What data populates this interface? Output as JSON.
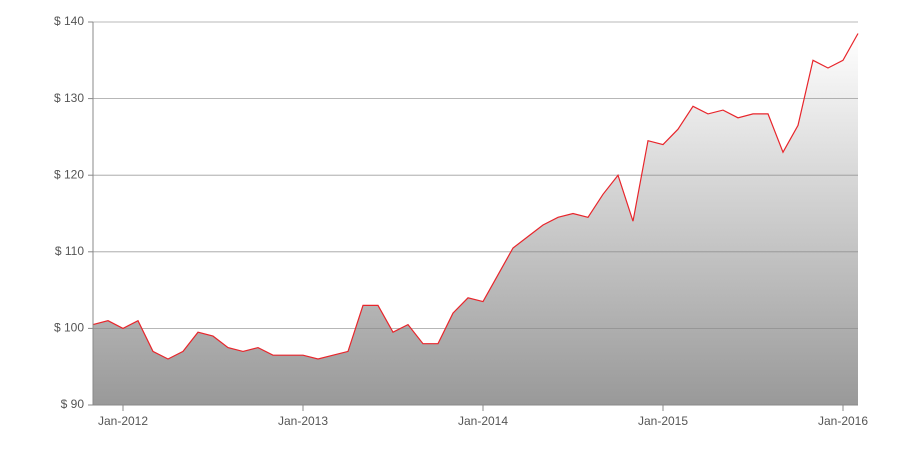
{
  "chart_data": {
    "type": "area",
    "x": [
      "2011-11",
      "2011-12",
      "2012-01",
      "2012-02",
      "2012-03",
      "2012-04",
      "2012-05",
      "2012-06",
      "2012-07",
      "2012-08",
      "2012-09",
      "2012-10",
      "2012-11",
      "2012-12",
      "2013-01",
      "2013-02",
      "2013-03",
      "2013-04",
      "2013-05",
      "2013-06",
      "2013-07",
      "2013-08",
      "2013-09",
      "2013-10",
      "2013-11",
      "2013-12",
      "2014-01",
      "2014-02",
      "2014-03",
      "2014-04",
      "2014-05",
      "2014-06",
      "2014-07",
      "2014-08",
      "2014-09",
      "2014-10",
      "2014-11",
      "2014-12",
      "2015-01",
      "2015-02",
      "2015-03",
      "2015-04",
      "2015-05",
      "2015-06",
      "2015-07",
      "2015-08",
      "2015-09",
      "2015-10",
      "2015-11",
      "2015-12",
      "2016-01",
      "2016-02"
    ],
    "series": [
      {
        "color": "#e8252b",
        "values": [
          100.5,
          101,
          100,
          101,
          97,
          96,
          97,
          99.5,
          99,
          97.5,
          97,
          97.5,
          96.5,
          96.5,
          96.5,
          96,
          96.5,
          97,
          103,
          103,
          99.5,
          100.5,
          98,
          98,
          102,
          104,
          103.5,
          107,
          110.5,
          112,
          113.5,
          114.5,
          115,
          114.5,
          117.5,
          120,
          114,
          124.5,
          124,
          126,
          129,
          128,
          128.5,
          127.5,
          128,
          128,
          123,
          126.5,
          135,
          134,
          135,
          138.5
        ]
      }
    ],
    "xlim": [
      "2011-11",
      "2016-02"
    ],
    "xticks": [
      {
        "value": "2012-01",
        "label": "Jan-2012"
      },
      {
        "value": "2013-01",
        "label": "Jan-2013"
      },
      {
        "value": "2014-01",
        "label": "Jan-2014"
      },
      {
        "value": "2015-01",
        "label": "Jan-2015"
      },
      {
        "value": "2016-01",
        "label": "Jan-2016"
      }
    ],
    "ylim": [
      90,
      140
    ],
    "yticks": [
      {
        "value": 90,
        "label": "$ 90"
      },
      {
        "value": 100,
        "label": "$ 100"
      },
      {
        "value": 110,
        "label": "$ 110"
      },
      {
        "value": 120,
        "label": "$ 120"
      },
      {
        "value": 130,
        "label": "$ 130"
      },
      {
        "value": 140,
        "label": "$ 140"
      }
    ],
    "grid": true
  }
}
